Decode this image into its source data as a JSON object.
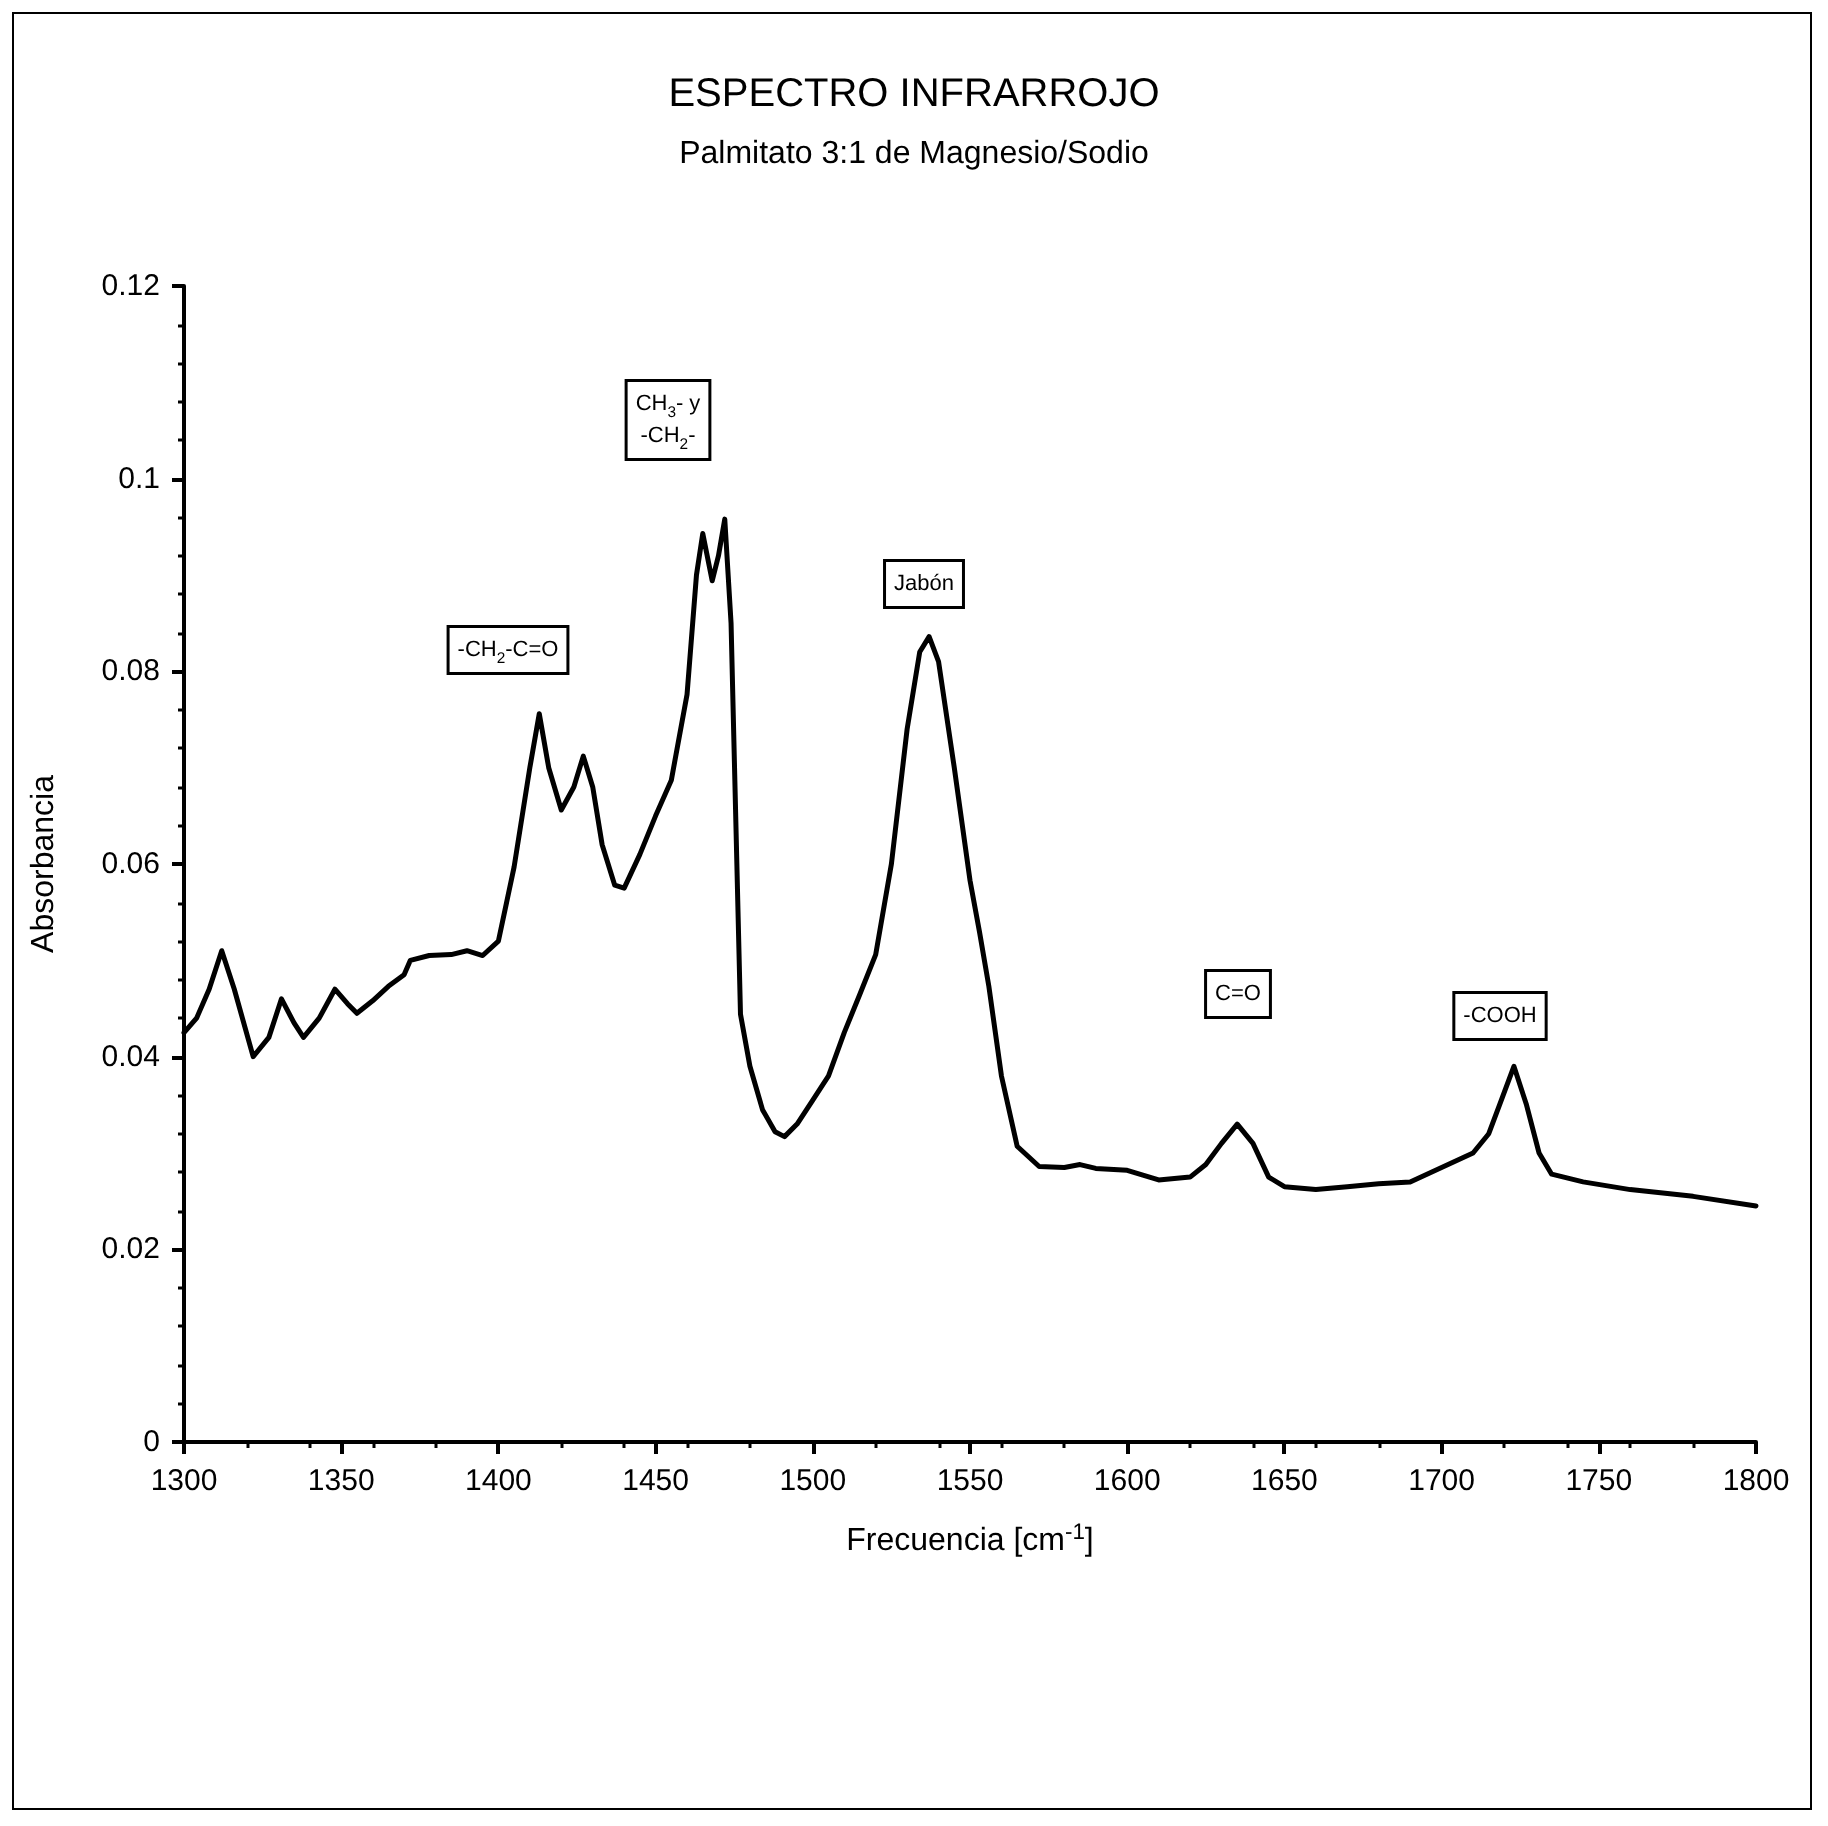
{
  "chart_data": {
    "type": "line",
    "title": "ESPECTRO INFRARROJO",
    "subtitle": "Palmitato 3:1 de Magnesio/Sodio",
    "xlabel": "Frecuencia [cm$^{-1}$]",
    "ylabel": "Absorbancia",
    "series": [
      {
        "color": "#000000",
        "x": [
          1300,
          1304,
          1308,
          1312,
          1316,
          1322,
          1327,
          1331,
          1335,
          1338,
          1343,
          1348,
          1352,
          1355,
          1360,
          1365,
          1370,
          1372,
          1378,
          1385,
          1390,
          1395,
          1400,
          1405,
          1410,
          1413,
          1416,
          1420,
          1424,
          1427,
          1430,
          1433,
          1437,
          1440,
          1445,
          1450,
          1455,
          1460,
          1463,
          1465,
          1468,
          1470,
          1472,
          1474,
          1477,
          1480,
          1484,
          1488,
          1491,
          1495,
          1500,
          1505,
          1510,
          1515,
          1520,
          1525,
          1530,
          1534,
          1537,
          1540,
          1545,
          1550,
          1553,
          1556,
          1560,
          1565,
          1572,
          1580,
          1585,
          1590,
          1600,
          1610,
          1620,
          1625,
          1630,
          1635,
          1640,
          1645,
          1650,
          1660,
          1670,
          1680,
          1690,
          1700,
          1710,
          1715,
          1719,
          1723,
          1727,
          1731,
          1735,
          1745,
          1760,
          1780,
          1800
        ],
        "values": [
          0.0425,
          0.044,
          0.047,
          0.051,
          0.047,
          0.04,
          0.042,
          0.046,
          0.0435,
          0.042,
          0.044,
          0.047,
          0.0455,
          0.0445,
          0.0458,
          0.0473,
          0.0485,
          0.05,
          0.0505,
          0.0506,
          0.051,
          0.0505,
          0.052,
          0.0597,
          0.07,
          0.0756,
          0.07,
          0.0656,
          0.068,
          0.0712,
          0.068,
          0.062,
          0.0578,
          0.0575,
          0.061,
          0.065,
          0.0687,
          0.0776,
          0.09,
          0.0943,
          0.0894,
          0.092,
          0.0958,
          0.085,
          0.0444,
          0.039,
          0.0345,
          0.0322,
          0.0317,
          0.033,
          0.0355,
          0.038,
          0.0425,
          0.0465,
          0.0506,
          0.06,
          0.074,
          0.082,
          0.0836,
          0.081,
          0.07,
          0.0583,
          0.053,
          0.0473,
          0.038,
          0.0307,
          0.0286,
          0.0285,
          0.0288,
          0.0284,
          0.0282,
          0.0272,
          0.0275,
          0.0288,
          0.031,
          0.033,
          0.031,
          0.0275,
          0.0265,
          0.0262,
          0.0265,
          0.0268,
          0.027,
          0.0285,
          0.03,
          0.032,
          0.0355,
          0.039,
          0.035,
          0.03,
          0.0278,
          0.027,
          0.0262,
          0.0255,
          0.0245
        ]
      }
    ],
    "xlim": [
      1300,
      1800
    ],
    "xticks": [
      1300,
      1350,
      1400,
      1450,
      1500,
      1550,
      1600,
      1650,
      1700,
      1750,
      1800
    ],
    "ylim": [
      0,
      0.12
    ],
    "yticks": [
      0,
      0.02,
      0.04,
      0.06,
      0.08,
      0.1,
      0.12
    ],
    "grid": false,
    "marker": "none",
    "line_style": "solid",
    "annotations": [
      "-CH$_{2}$-C=O",
      "CH$_{3}$- y\n-CH$_{2}$-",
      "Jabón",
      "C=O",
      "-COOH"
    ]
  }
}
